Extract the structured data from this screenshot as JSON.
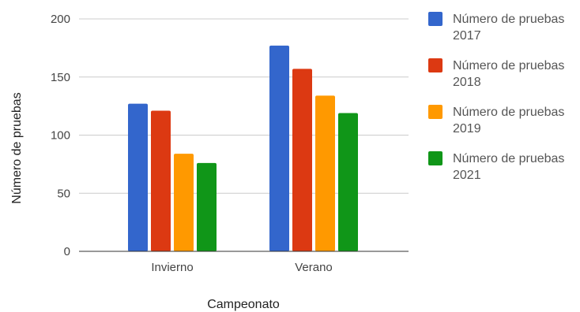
{
  "chart_data": {
    "type": "bar",
    "title": "",
    "xlabel": "Campeonato",
    "ylabel": "Número de pruebas",
    "categories": [
      "Invierno",
      "Verano"
    ],
    "ylim": [
      0,
      200
    ],
    "yticks": [
      0,
      50,
      100,
      150,
      200
    ],
    "grid": true,
    "legend_position": "right",
    "series": [
      {
        "name": "Número de pruebas 2017",
        "color": "#3366cc",
        "values": [
          127,
          177
        ]
      },
      {
        "name": "Número de pruebas 2018",
        "color": "#dc3912",
        "values": [
          121,
          157
        ]
      },
      {
        "name": "Número de pruebas 2019",
        "color": "#ff9900",
        "values": [
          84,
          134
        ]
      },
      {
        "name": "Número de pruebas 2021",
        "color": "#109618",
        "values": [
          76,
          119
        ]
      }
    ]
  }
}
